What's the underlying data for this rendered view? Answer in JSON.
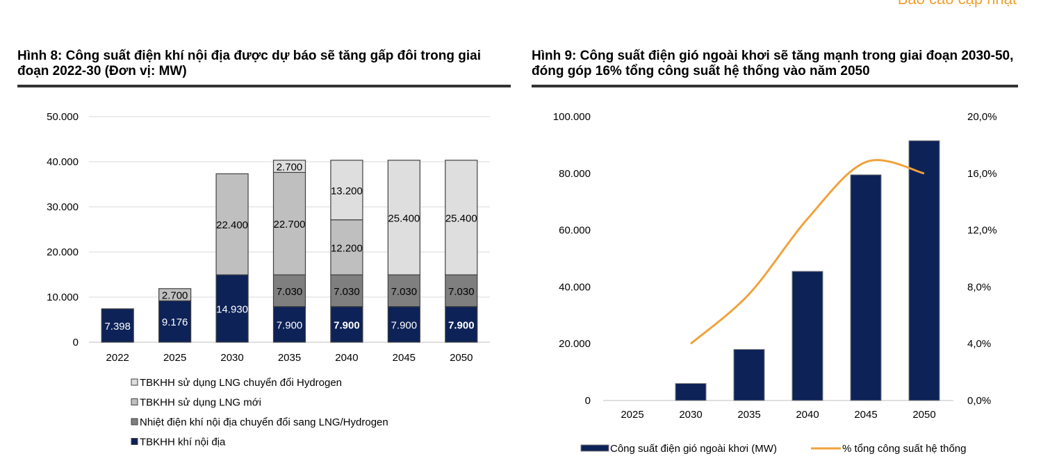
{
  "header": {
    "report_tag": "Báo cáo cập nhật"
  },
  "colors": {
    "navy": "#0d2257",
    "gray_dark": "#7f7f7f",
    "gray_mid": "#bfbfbf",
    "gray_light": "#dedede",
    "orange": "#f0a23b",
    "gridline": "#d9d9d9"
  },
  "figures": [
    {
      "title": "Hình 8: Công suất điện khí nội địa được dự báo sẽ tăng gấp đôi trong giai đoạn 2022-30 (Đơn vị: MW)"
    },
    {
      "title": "Hình 9: Công suất điện gió ngoài khơi sẽ tăng mạnh trong giai đoạn 2030-50, đóng góp 16% tổng công suất hệ thống vào năm 2050"
    }
  ],
  "chart_data": [
    {
      "type": "bar",
      "stacked": true,
      "categories": [
        "2022",
        "2025",
        "2030",
        "2035",
        "2040",
        "2045",
        "2050"
      ],
      "ylim": [
        0,
        50000
      ],
      "yticks": [
        "0",
        "10.000",
        "20.000",
        "30.000",
        "40.000",
        "50.000"
      ],
      "grid": true,
      "legend_position": "bottom",
      "series": [
        {
          "name": "TBKHH khí nội địa",
          "color": "#0d2257",
          "values": [
            7398,
            9176,
            14930,
            7900,
            7900,
            7900,
            7900
          ],
          "labels": [
            "7.398",
            "9.176",
            "14.930",
            "7.900",
            "7.900",
            "7.900",
            "7.900"
          ]
        },
        {
          "name": "Nhiệt điện khí nội địa chuyển đổi sang LNG/Hydrogen",
          "color": "#7f7f7f",
          "values": [
            0,
            0,
            0,
            7030,
            7030,
            7030,
            7030
          ],
          "labels": [
            "",
            "",
            "",
            "7.030",
            "7.030",
            "7.030",
            "7.030"
          ]
        },
        {
          "name": "TBKHH sử dụng LNG mới",
          "color": "#bfbfbf",
          "values": [
            0,
            2700,
            22400,
            22700,
            12200,
            0,
            0
          ],
          "labels": [
            "",
            "2.700",
            "22.400",
            "22.700",
            "12.200",
            "",
            ""
          ]
        },
        {
          "name": "TBKHH sử dụng LNG chuyển đổi Hydrogen",
          "color": "#dedede",
          "values": [
            0,
            0,
            0,
            2700,
            13200,
            25400,
            25400
          ],
          "labels": [
            "",
            "",
            "",
            "2.700",
            "13.200",
            "25.400",
            "25.400"
          ]
        }
      ],
      "legend_order": [
        "TBKHH sử dụng LNG chuyển đổi Hydrogen",
        "TBKHH sử dụng LNG mới",
        "Nhiệt điện khí nội địa chuyển đổi sang LNG/Hydrogen",
        "TBKHH khí nội địa"
      ]
    },
    {
      "type": "bar",
      "combo": "bar+line",
      "categories": [
        "2025",
        "2030",
        "2035",
        "2040",
        "2045",
        "2050"
      ],
      "ylim": [
        0,
        100000
      ],
      "yticks": [
        "0",
        "20.000",
        "40.000",
        "60.000",
        "80.000",
        "100.000"
      ],
      "y2lim": [
        0,
        20
      ],
      "y2ticks": [
        "0,0%",
        "4,0%",
        "8,0%",
        "12,0%",
        "16,0%",
        "20,0%"
      ],
      "grid": false,
      "legend_position": "bottom",
      "series": [
        {
          "name": "Công suất điện gió ngoài khơi (MW)",
          "type": "bar",
          "axis": "left",
          "color": "#0d2257",
          "values": [
            0,
            6000,
            18000,
            45500,
            79500,
            91500
          ]
        },
        {
          "name": "% tổng công suất hệ thống",
          "type": "line",
          "axis": "right",
          "color": "#f0a23b",
          "values": [
            null,
            4.0,
            7.5,
            12.8,
            16.8,
            16.0
          ]
        }
      ]
    }
  ]
}
